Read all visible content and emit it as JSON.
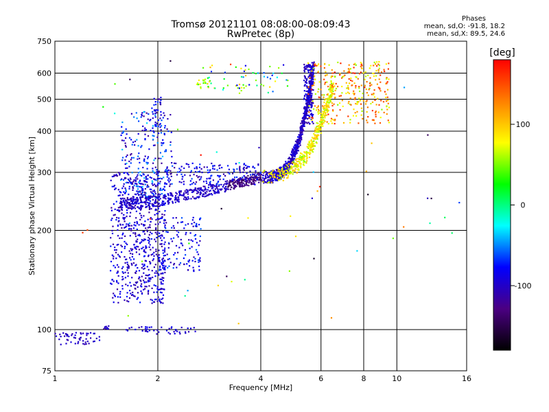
{
  "chart_data": {
    "type": "scatter",
    "title": "Tromsø 20121101 08:08:00-08:09:43",
    "subtitle": "RwPretec (8p)",
    "xlabel": "Frequency [MHz]",
    "ylabel": "Stationary phase Virtual Height [km]",
    "x_scale": "log2",
    "y_scale": "log",
    "xlim": [
      1,
      16
    ],
    "ylim": [
      75,
      750
    ],
    "x_ticks": [
      1,
      2,
      4,
      6,
      8,
      10,
      16
    ],
    "y_ticks": [
      75,
      100,
      200,
      300,
      400,
      500,
      600,
      750
    ],
    "x_gridlines": [
      2,
      4,
      6,
      8,
      10
    ],
    "y_gridlines": [
      100,
      200,
      300,
      400,
      500,
      600
    ],
    "grid": true,
    "colorbar": {
      "unit": "[deg]",
      "range": [
        -180,
        180
      ],
      "ticks": [
        100,
        0,
        -100
      ],
      "colors": [
        "#000000",
        "#4b0082",
        "#0000ff",
        "#00ffff",
        "#00ff00",
        "#ffff00",
        "#ff8000",
        "#ff0000"
      ]
    },
    "stats": {
      "heading": "Phases",
      "o_mode": "mean, sd,O: -91.8, 18.2",
      "x_mode": "mean, sd,X:  89.5, 24.6"
    },
    "point_clusters": [
      {
        "desc": "E layer",
        "f": [
          1.0,
          1.35
        ],
        "h": [
          90,
          100
        ],
        "phase": -100
      },
      {
        "desc": "E layer tail",
        "f": [
          1.55,
          2.6
        ],
        "h": [
          97,
          102
        ],
        "phase": -95
      },
      {
        "desc": "F trace O-mode",
        "f": [
          1.55,
          4.0
        ],
        "h": [
          240,
          290
        ],
        "phase": -110
      },
      {
        "desc": "F cusp O-mode",
        "f": [
          4.0,
          5.7
        ],
        "h": [
          290,
          640
        ],
        "phase": -100
      },
      {
        "desc": "F cusp X-mode",
        "f": [
          4.0,
          6.5
        ],
        "h": [
          290,
          560
        ],
        "phase": 80
      },
      {
        "desc": "spread F lower",
        "f": [
          1.45,
          2.1
        ],
        "h": [
          120,
          300
        ],
        "phase": -95
      },
      {
        "desc": "spread F upper",
        "f": [
          1.55,
          2.2
        ],
        "h": [
          250,
          500
        ],
        "phase": -80
      },
      {
        "desc": "high scatter",
        "f": [
          2.5,
          4.8
        ],
        "h": [
          520,
          640
        ],
        "phase": 10
      },
      {
        "desc": "X scatter high",
        "f": [
          5.5,
          9.5
        ],
        "h": [
          420,
          650
        ],
        "phase": 110
      }
    ]
  }
}
